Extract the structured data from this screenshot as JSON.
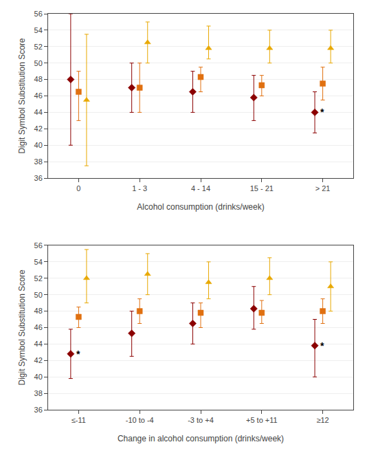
{
  "chart_data": [
    {
      "type": "scatter",
      "xlabel": "Alcohol consumption (drinks/week)",
      "ylabel": "Digit Symbol Substitution Score",
      "categories": [
        "0",
        "1 - 3",
        "4 - 14",
        "15 - 21",
        "> 21"
      ],
      "ylim": [
        36,
        56
      ],
      "yticks": [
        36,
        38,
        40,
        42,
        44,
        46,
        48,
        50,
        52,
        54,
        56
      ],
      "grid": true,
      "series": [
        {
          "color": "#8B0000",
          "marker": "diamond",
          "values": [
            48.0,
            47.0,
            46.5,
            45.8,
            44.0
          ],
          "ci_low": [
            40.0,
            44.0,
            44.0,
            43.0,
            41.5
          ],
          "ci_high": [
            56.0,
            50.0,
            49.0,
            48.5,
            46.5
          ],
          "annotations": [
            null,
            null,
            null,
            null,
            "*"
          ]
        },
        {
          "color": "#E07010",
          "marker": "square",
          "values": [
            46.5,
            47.0,
            48.3,
            47.3,
            47.5
          ],
          "ci_low": [
            43.0,
            44.0,
            46.5,
            46.0,
            45.5
          ],
          "ci_high": [
            49.0,
            50.0,
            49.5,
            48.5,
            49.5
          ],
          "annotations": [
            null,
            null,
            null,
            null,
            null
          ]
        },
        {
          "color": "#E8A800",
          "marker": "triangle-up",
          "values": [
            45.5,
            52.5,
            51.8,
            51.8,
            51.8
          ],
          "ci_low": [
            37.5,
            50.0,
            50.5,
            50.0,
            50.0
          ],
          "ci_high": [
            53.5,
            55.0,
            54.5,
            54.0,
            54.0
          ],
          "annotations": [
            null,
            null,
            null,
            null,
            null
          ]
        }
      ]
    },
    {
      "type": "scatter",
      "xlabel": "Change in alcohol consumption (drinks/week)",
      "ylabel": "Digit Symbol Substitution Score",
      "categories": [
        "≤-11",
        "-10 to -4",
        "-3 to +4",
        "+5 to +11",
        "≥12"
      ],
      "ylim": [
        36,
        56
      ],
      "yticks": [
        36,
        38,
        40,
        42,
        44,
        46,
        48,
        50,
        52,
        54,
        56
      ],
      "grid": true,
      "series": [
        {
          "color": "#8B0000",
          "marker": "diamond",
          "values": [
            42.8,
            45.3,
            46.5,
            48.3,
            43.8
          ],
          "ci_low": [
            39.8,
            42.5,
            44.0,
            45.8,
            40.0
          ],
          "ci_high": [
            45.8,
            48.0,
            49.0,
            51.0,
            47.0
          ],
          "annotations": [
            "*",
            null,
            null,
            null,
            "*"
          ]
        },
        {
          "color": "#E07010",
          "marker": "square",
          "values": [
            47.3,
            48.0,
            47.8,
            47.8,
            48.0
          ],
          "ci_low": [
            46.0,
            46.5,
            46.0,
            46.5,
            46.5
          ],
          "ci_high": [
            48.5,
            49.5,
            49.0,
            49.3,
            49.5
          ],
          "annotations": [
            null,
            null,
            null,
            null,
            null
          ]
        },
        {
          "color": "#E8A800",
          "marker": "triangle-up",
          "values": [
            52.0,
            52.5,
            51.5,
            52.0,
            51.0
          ],
          "ci_low": [
            49.0,
            50.0,
            49.5,
            50.0,
            48.0
          ],
          "ci_high": [
            55.5,
            55.0,
            54.0,
            54.5,
            54.0
          ],
          "annotations": [
            null,
            null,
            null,
            null,
            null
          ]
        }
      ]
    }
  ]
}
